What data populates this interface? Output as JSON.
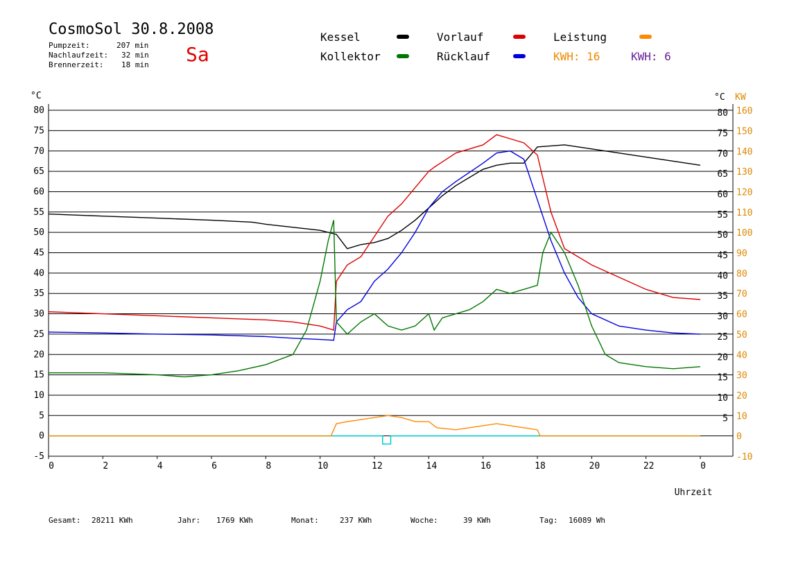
{
  "header": {
    "title": "CosmoSol 30.8.2008",
    "day": "Sa",
    "stats": [
      {
        "label": "Pumpzeit:",
        "value": "207 min"
      },
      {
        "label": "Nachlaufzeit:",
        "value": "32 min"
      },
      {
        "label": "Brennerzeit:",
        "value": "18 min"
      }
    ]
  },
  "legend": {
    "kessel": "Kessel",
    "vorlauf": "Vorlauf",
    "leistung": "Leistung",
    "kollektor": "Kollektor",
    "ruecklauf": "Rücklauf",
    "kwh1": "KWH: 16",
    "kwh2": "KWH: 6"
  },
  "colors": {
    "kessel": "#000000",
    "vorlauf": "#dd0000",
    "leistung": "#ff8800",
    "kollektor": "#007700",
    "ruecklauf": "#0000dd",
    "kwh2": "#662299",
    "cyan": "#00cccc",
    "kw_axis": "#dd8800"
  },
  "footer": {
    "gesamt_label": "Gesamt:",
    "gesamt_value": "28211 KWh",
    "jahr_label": "Jahr:",
    "jahr_value": "1769 KWh",
    "monat_label": "Monat:",
    "monat_value": "237 KWh",
    "woche_label": "Woche:",
    "woche_value": "39 KWh",
    "tag_label": "Tag:",
    "tag_value": "16089 Wh"
  },
  "chart_data": {
    "type": "line",
    "xlabel": "Uhrzeit",
    "ylabel_left": "°C",
    "ylabel_right_c": "°C",
    "ylabel_right_kw": "KW",
    "xlim": [
      0,
      24
    ],
    "ylim": [
      -5,
      85
    ],
    "x_ticks": [
      "0",
      "2",
      "4",
      "6",
      "8",
      "10",
      "12",
      "14",
      "16",
      "18",
      "20",
      "22",
      "0"
    ],
    "y_ticks_left": [
      80,
      75,
      70,
      65,
      60,
      55,
      50,
      45,
      40,
      35,
      30,
      25,
      20,
      15,
      10,
      5,
      0,
      -5
    ],
    "y_ticks_right_c": [
      80,
      75,
      70,
      65,
      60,
      55,
      50,
      45,
      40,
      35,
      30,
      25,
      20,
      15,
      10,
      5
    ],
    "y_ticks_right_kw": [
      160,
      150,
      140,
      130,
      120,
      110,
      100,
      90,
      80,
      70,
      60,
      50,
      40,
      30,
      20,
      10,
      0,
      -10
    ],
    "series": [
      {
        "name": "Kessel",
        "key": "kessel",
        "x": [
          0,
          2,
          4,
          6,
          7.5,
          8,
          10,
          10.6,
          11,
          11.5,
          12,
          12.5,
          13,
          13.5,
          14,
          14.5,
          15,
          15.5,
          16,
          16.5,
          17,
          17.5,
          18,
          19,
          20,
          21,
          22,
          23,
          24
        ],
        "y": [
          54.5,
          54,
          53.5,
          53,
          52.5,
          52,
          50.5,
          49.5,
          46,
          47,
          47.5,
          48.5,
          50.5,
          53,
          56,
          59,
          61.5,
          63.5,
          65.5,
          66.5,
          67,
          67,
          71,
          71.5,
          70.5,
          69.5,
          68.5,
          67.5,
          66.5
        ]
      },
      {
        "name": "Vorlauf",
        "key": "vorlauf",
        "x": [
          0,
          2,
          4,
          6,
          8,
          9,
          10,
          10.5,
          10.6,
          11,
          11.5,
          12,
          12.5,
          13,
          13.5,
          14,
          14.2,
          15,
          16,
          16.5,
          17,
          17.5,
          18,
          18.5,
          19,
          20,
          21,
          22,
          23,
          24
        ],
        "y": [
          30.5,
          30,
          29.5,
          29,
          28.5,
          28,
          27,
          26,
          38,
          42,
          44,
          49,
          54,
          57,
          61,
          65,
          66,
          69.5,
          71.5,
          74,
          73,
          72,
          69,
          55,
          46,
          42,
          39,
          36,
          34,
          33.5
        ]
      },
      {
        "name": "Rücklauf",
        "key": "ruecklauf",
        "x": [
          0,
          2,
          4,
          6,
          8,
          9,
          10,
          10.5,
          10.6,
          11,
          11.5,
          12,
          12.5,
          13,
          13.5,
          14,
          14.5,
          15,
          16,
          16.5,
          17,
          17.5,
          18,
          18.5,
          19,
          19.5,
          20,
          21,
          22,
          23,
          24
        ],
        "y": [
          25.5,
          25.3,
          25,
          24.8,
          24.4,
          24,
          23.7,
          23.5,
          28,
          31,
          33,
          38,
          41,
          45,
          50,
          56,
          60,
          62.5,
          67,
          69.5,
          70,
          68,
          58,
          48,
          40,
          34,
          30,
          27,
          26,
          25.3,
          25
        ]
      },
      {
        "name": "Kollektor",
        "key": "kollektor",
        "x": [
          0,
          2,
          4,
          5,
          6,
          7,
          8,
          9,
          9.5,
          10,
          10.3,
          10.5,
          10.6,
          11,
          11.5,
          12,
          12.5,
          13,
          13.5,
          14,
          14.2,
          14.5,
          15,
          15.5,
          16,
          16.5,
          17,
          17.5,
          18,
          18.2,
          18.5,
          19,
          19.5,
          20,
          20.5,
          21,
          22,
          23,
          24
        ],
        "y": [
          15.5,
          15.5,
          15,
          14.5,
          15,
          16,
          17.5,
          20,
          26,
          38,
          48,
          53,
          28,
          25,
          28,
          30,
          27,
          26,
          27,
          30,
          26,
          29,
          30,
          31,
          33,
          36,
          35,
          36,
          37,
          45,
          50,
          45,
          37,
          27,
          20,
          18,
          17,
          16.5,
          17
        ]
      },
      {
        "name": "Leistung",
        "key": "leistung",
        "x": [
          0,
          10.4,
          10.6,
          11,
          11.5,
          12,
          12.5,
          13,
          13.5,
          14,
          14.3,
          15,
          16,
          16.5,
          17,
          17.5,
          18,
          18.1,
          24
        ],
        "y": [
          0,
          0,
          3,
          3.5,
          4,
          4.5,
          5,
          4.5,
          3.5,
          3.5,
          2,
          1.5,
          2.5,
          3,
          2.5,
          2,
          1.5,
          0,
          0
        ]
      }
    ],
    "kwh_value": 16,
    "kwh_value_2": 6
  }
}
